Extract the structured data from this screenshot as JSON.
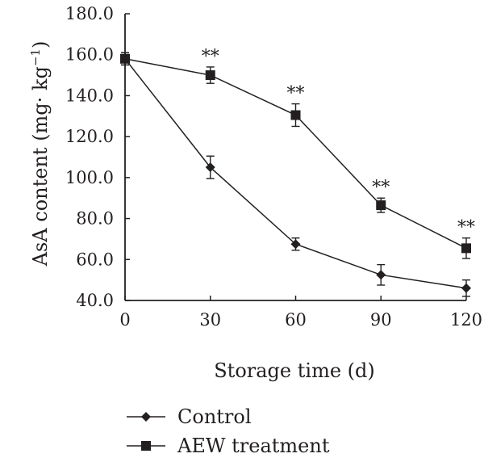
{
  "chart_data": {
    "type": "line",
    "xlabel": "Storage time (d)",
    "ylabel": "AsA content (mg· kg",
    "ylabel_exponent": "−1",
    "ylabel_close": ")",
    "xlim": [
      0,
      120
    ],
    "ylim": [
      40,
      180
    ],
    "x_ticks": [
      0,
      30,
      60,
      90,
      120
    ],
    "x_tick_labels": [
      "0",
      "30",
      "60",
      "90",
      "120"
    ],
    "y_ticks": [
      40,
      60,
      80,
      100,
      120,
      140,
      160,
      180
    ],
    "y_tick_labels": [
      "40.0",
      "60.0",
      "80.0",
      "100.0",
      "120.0",
      "140.0",
      "160.0",
      "180.0"
    ],
    "grid": false,
    "legend_position": "bottom-left",
    "x": [
      0,
      30,
      60,
      90,
      120
    ],
    "series": [
      {
        "name": "Control",
        "marker": "diamond",
        "values": [
          158,
          105,
          67.5,
          52.5,
          46
        ],
        "errors": [
          3,
          5.5,
          3,
          5,
          4
        ]
      },
      {
        "name": "AEW treatment",
        "marker": "square",
        "values": [
          158,
          150,
          130.5,
          86.5,
          65.5
        ],
        "errors": [
          3,
          4,
          5.5,
          3.5,
          5
        ]
      }
    ],
    "annotations": [
      {
        "x": 30,
        "y": 150,
        "text": "**"
      },
      {
        "x": 60,
        "y": 130.5,
        "text": "**"
      },
      {
        "x": 90,
        "y": 86.5,
        "text": "**"
      },
      {
        "x": 120,
        "y": 65.5,
        "text": "**"
      }
    ],
    "colors": {
      "ink": "#231f20"
    }
  }
}
